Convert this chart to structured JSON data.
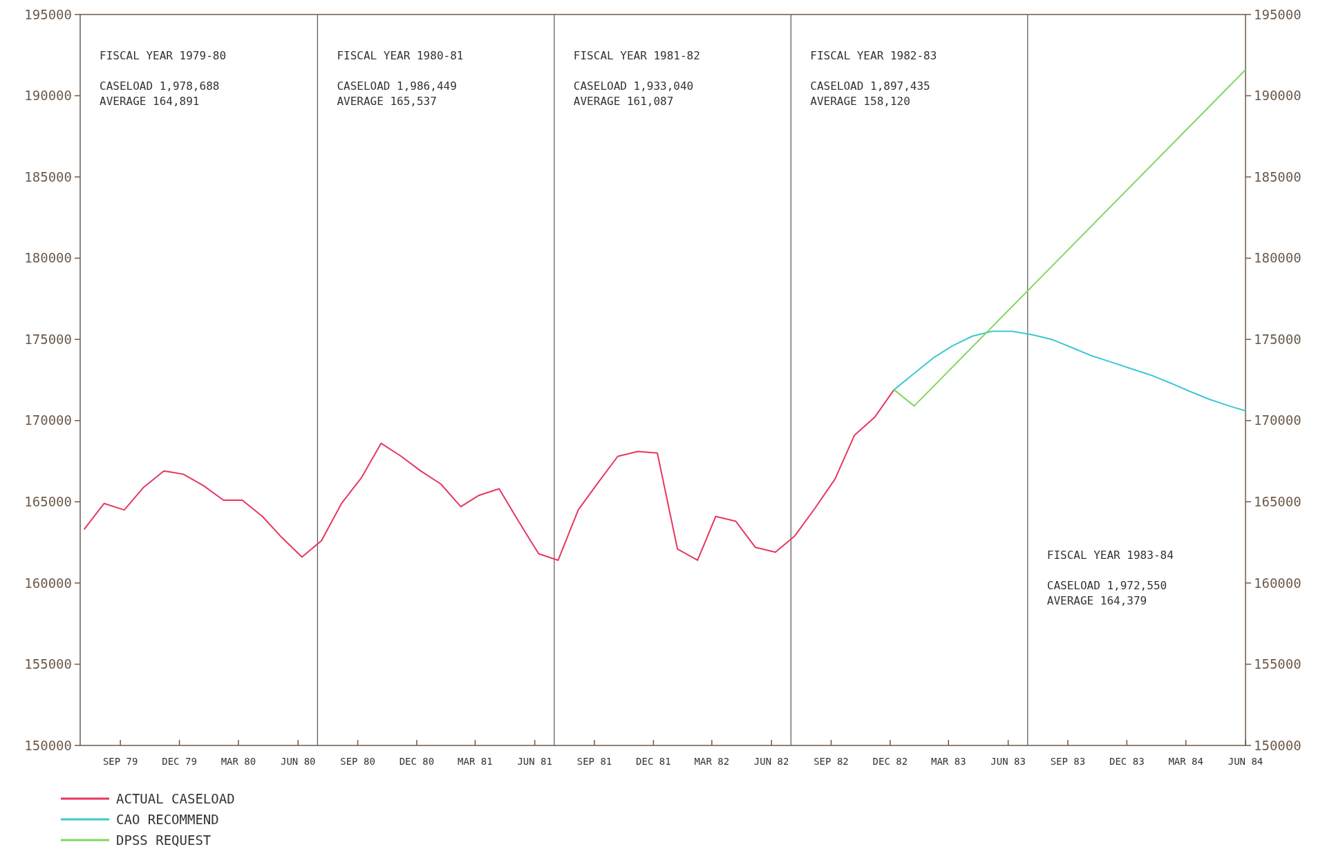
{
  "chart_data": {
    "type": "line",
    "x": [
      "1979-07-07",
      "1979-08-07",
      "1979-09-07",
      "1979-10-07",
      "1979-11-07",
      "1979-12-07",
      "1980-01-07",
      "1980-02-07",
      "1980-03-07",
      "1980-04-07",
      "1980-05-07",
      "1980-06-07",
      "1980-07-07",
      "1980-08-07",
      "1980-09-07",
      "1980-10-07",
      "1980-11-07",
      "1980-12-07",
      "1981-01-07",
      "1981-02-07",
      "1981-03-07",
      "1981-04-07",
      "1981-05-07",
      "1981-06-07",
      "1981-07-07",
      "1981-08-07",
      "1981-09-07",
      "1981-10-07",
      "1981-11-07",
      "1981-12-07",
      "1982-01-07",
      "1982-02-07",
      "1982-03-07",
      "1982-04-07",
      "1982-05-07",
      "1982-06-07",
      "1982-07-07",
      "1982-08-07",
      "1982-09-07",
      "1982-10-07",
      "1982-11-07",
      "1982-12-07"
    ],
    "series": [
      {
        "name": "ACTUAL CASELOAD",
        "color": "#e8365e",
        "values": [
          163300,
          164900,
          164500,
          165900,
          166900,
          166700,
          166000,
          165100,
          165100,
          164100,
          162800,
          161600,
          162600,
          164900,
          166500,
          168600,
          167800,
          166900,
          166100,
          164700,
          165400,
          165800,
          163800,
          161800,
          161400,
          164500,
          166200,
          167800,
          168100,
          168000,
          162100,
          161400,
          164100,
          163800,
          162200,
          161900,
          162900,
          164600,
          166400,
          169100,
          170200,
          171900
        ]
      },
      {
        "name": "CAO RECOMMEND",
        "color": "#3cc8d2",
        "x": [
          "1982-12-07",
          "1983-01-07",
          "1983-02-07",
          "1983-03-07",
          "1983-04-07",
          "1983-05-07",
          "1983-06-07",
          "1983-07-07",
          "1983-08-07",
          "1983-09-07",
          "1983-10-07",
          "1983-11-07",
          "1983-12-07",
          "1984-01-07",
          "1984-02-07",
          "1984-03-07",
          "1984-04-07",
          "1984-05-07",
          "1984-06-01"
        ],
        "values": [
          171900,
          172900,
          173900,
          174600,
          175200,
          175500,
          175500,
          175300,
          175000,
          174500,
          174000,
          173600,
          173200,
          172800,
          172300,
          171800,
          171300,
          170900,
          170600
        ]
      },
      {
        "name": "DPSS REQUEST",
        "color": "#7ed860",
        "x": [
          "1982-12-07",
          "1983-01-07",
          "1984-06-01"
        ],
        "values": [
          171900,
          170900,
          191600
        ]
      }
    ],
    "xlim": [
      "1979-07-01",
      "1984-06-01"
    ],
    "xticks": [
      {
        "value": "1979-09",
        "label": "SEP 79"
      },
      {
        "value": "1979-12",
        "label": "DEC 79"
      },
      {
        "value": "1980-03",
        "label": "MAR 80"
      },
      {
        "value": "1980-06",
        "label": "JUN 80"
      },
      {
        "value": "1980-09",
        "label": "SEP 80"
      },
      {
        "value": "1980-12",
        "label": "DEC 80"
      },
      {
        "value": "1981-03",
        "label": "MAR 81"
      },
      {
        "value": "1981-06",
        "label": "JUN 81"
      },
      {
        "value": "1981-09",
        "label": "SEP 81"
      },
      {
        "value": "1981-12",
        "label": "DEC 81"
      },
      {
        "value": "1982-03",
        "label": "MAR 82"
      },
      {
        "value": "1982-06",
        "label": "JUN 82"
      },
      {
        "value": "1982-09",
        "label": "SEP 82"
      },
      {
        "value": "1982-12",
        "label": "DEC 82"
      },
      {
        "value": "1983-03",
        "label": "MAR 83"
      },
      {
        "value": "1983-06",
        "label": "JUN 83"
      },
      {
        "value": "1983-09",
        "label": "SEP 83"
      },
      {
        "value": "1983-12",
        "label": "DEC 83"
      },
      {
        "value": "1984-03",
        "label": "MAR 84"
      },
      {
        "value": "1984-06",
        "label": "JUN 84"
      }
    ],
    "ylim": [
      150000,
      195000
    ],
    "yticks": [
      150000,
      155000,
      160000,
      165000,
      170000,
      175000,
      180000,
      185000,
      190000,
      195000
    ],
    "y2lim": [
      150000,
      195000
    ],
    "y2ticks": [
      150000,
      155000,
      160000,
      165000,
      170000,
      175000,
      180000,
      185000,
      190000,
      195000
    ],
    "ref_lines": [
      {
        "axis": "x",
        "value": "1980-07",
        "color": "#555555"
      },
      {
        "axis": "x",
        "value": "1981-07",
        "color": "#555555"
      },
      {
        "axis": "x",
        "value": "1982-07",
        "color": "#555555"
      },
      {
        "axis": "x",
        "value": "1983-07",
        "color": "#555555"
      }
    ],
    "annotations": [
      "FISCAL YEAR 1979-80\n\nCASELOAD 1,978,688\nAVERAGE 164,891",
      "FISCAL YEAR 1980-81\n\nCASELOAD 1,986,449\nAVERAGE 165,537",
      "FISCAL YEAR 1981-82\n\nCASELOAD 1,933,040\nAVERAGE 161,087",
      "FISCAL YEAR 1982-83\n\nCASELOAD 1,897,435\nAVERAGE 158,120",
      "FISCAL YEAR 1983-84\n\nCASELOAD 1,972,550\nAVERAGE 164,379"
    ],
    "grid": false,
    "legend": "bottom left",
    "marker": "none",
    "line_style": "solid"
  }
}
